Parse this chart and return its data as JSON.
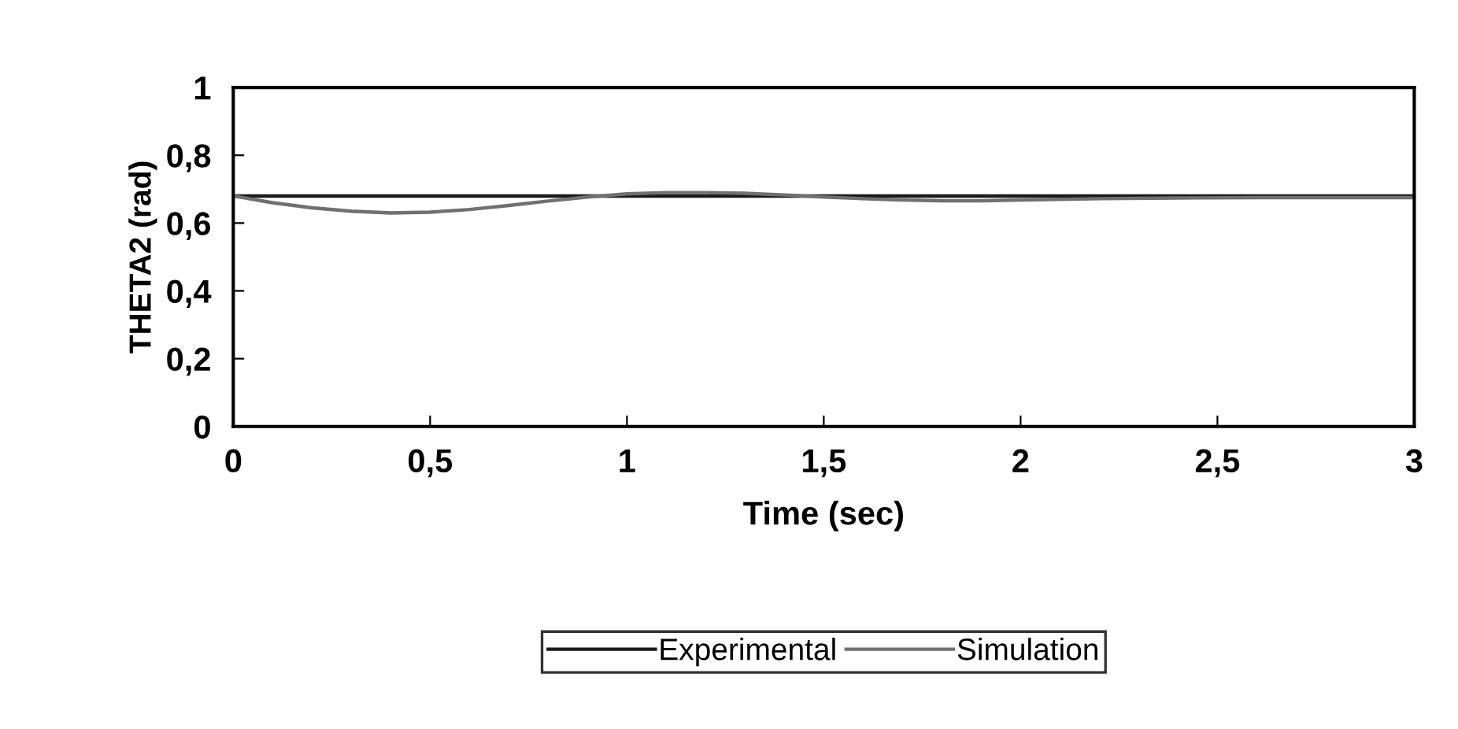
{
  "chart_data": {
    "type": "line",
    "xlabel": "Time (sec)",
    "ylabel": "THETA2 (rad)",
    "xlim": [
      0,
      3
    ],
    "ylim": [
      0,
      1
    ],
    "xticks": [
      0,
      {
        "value": 0.5,
        "label": "0,5"
      },
      1,
      {
        "value": 1.5,
        "label": "1,5"
      },
      2,
      {
        "value": 2.5,
        "label": "2,5"
      },
      3
    ],
    "yticks": [
      0,
      {
        "value": 0.2,
        "label": "0,2"
      },
      {
        "value": 0.4,
        "label": "0,4"
      },
      {
        "value": 0.6,
        "label": "0,6"
      },
      {
        "value": 0.8,
        "label": "0,8"
      },
      1
    ],
    "grid": false,
    "legend": "bottom",
    "marker": "none",
    "line_style": "solid",
    "series": [
      {
        "name": "Experimental",
        "color": "#1a1a1a",
        "x": [
          0,
          0.5,
          1,
          1.5,
          2,
          2.5,
          3
        ],
        "values": [
          0.68,
          0.68,
          0.68,
          0.68,
          0.68,
          0.68,
          0.68
        ]
      },
      {
        "name": "Simulation",
        "color": "#707070",
        "x": [
          0,
          0.1,
          0.2,
          0.3,
          0.4,
          0.5,
          0.6,
          0.7,
          0.8,
          0.9,
          1.0,
          1.1,
          1.2,
          1.3,
          1.4,
          1.5,
          1.6,
          1.7,
          1.8,
          1.9,
          2.0,
          2.2,
          2.4,
          2.6,
          2.8,
          3.0
        ],
        "values": [
          0.68,
          0.66,
          0.645,
          0.635,
          0.63,
          0.632,
          0.64,
          0.652,
          0.665,
          0.677,
          0.686,
          0.69,
          0.69,
          0.688,
          0.683,
          0.677,
          0.672,
          0.668,
          0.666,
          0.666,
          0.668,
          0.672,
          0.674,
          0.675,
          0.675,
          0.675
        ]
      }
    ]
  }
}
